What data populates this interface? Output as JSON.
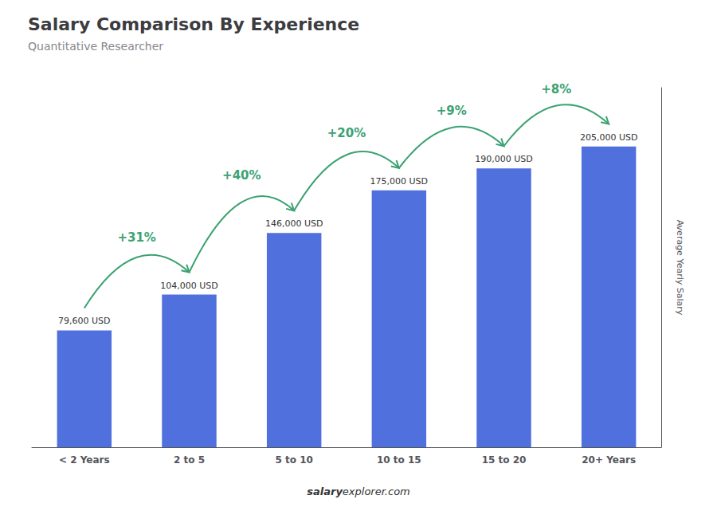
{
  "chart_data": {
    "type": "bar",
    "title": "Salary Comparison By Experience",
    "subtitle": "Quantitative Researcher",
    "categories": [
      "< 2 Years",
      "2 to 5",
      "5 to 10",
      "10 to 15",
      "15 to 20",
      "20+ Years"
    ],
    "values": [
      79600,
      104000,
      146000,
      175000,
      190000,
      205000
    ],
    "value_labels": [
      "79,600 USD",
      "104,000 USD",
      "146,000 USD",
      "175,000 USD",
      "190,000 USD",
      "205,000 USD"
    ],
    "data_labels": true,
    "annotations": [
      "+31%",
      "+40%",
      "+20%",
      "+9%",
      "+8%"
    ],
    "ylabel": "Average Yearly Salary",
    "ylim": [
      0,
      245000
    ],
    "tick_labels": "x",
    "grid": false,
    "footer": [
      "salary",
      "explorer.com"
    ]
  }
}
